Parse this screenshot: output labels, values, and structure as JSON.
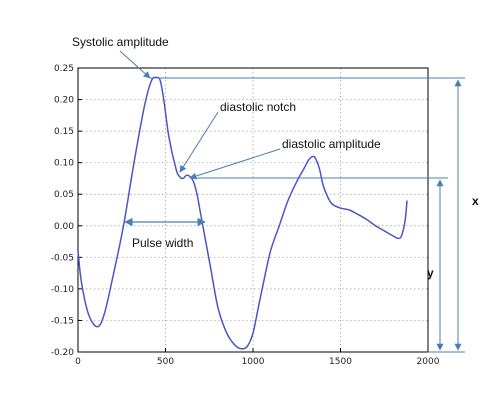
{
  "chart_data": {
    "type": "line",
    "title": "",
    "xlabel": "",
    "ylabel": "",
    "xlim": [
      0,
      2000
    ],
    "ylim": [
      -0.2,
      0.25
    ],
    "grid": true,
    "x_ticks": [
      "0",
      "500",
      "1000",
      "1500",
      "2000"
    ],
    "y_ticks": [
      "0.25",
      "0.20",
      "0.15",
      "0.10",
      "0.05",
      "0.00",
      "-0.05",
      "-0.10",
      "-0.15",
      "-0.20"
    ],
    "series": [
      {
        "x": [
          0,
          20,
          60,
          110,
          150,
          200,
          260,
          320,
          380,
          420,
          450,
          470,
          490,
          520,
          560,
          580,
          600,
          620,
          640,
          660,
          680,
          700,
          720,
          760,
          800,
          850,
          900,
          940,
          970,
          1000,
          1030,
          1060,
          1100,
          1150,
          1200,
          1250,
          1290,
          1320,
          1345,
          1360,
          1380,
          1400,
          1420,
          1450,
          1500,
          1550,
          1600,
          1650,
          1700,
          1750,
          1800,
          1830,
          1850,
          1870,
          1880
        ],
        "y": [
          -0.04,
          -0.09,
          -0.14,
          -0.16,
          -0.14,
          -0.08,
          0.0,
          0.1,
          0.19,
          0.23,
          0.235,
          0.23,
          0.2,
          0.14,
          0.09,
          0.078,
          0.075,
          0.08,
          0.078,
          0.07,
          0.05,
          0.02,
          -0.01,
          -0.07,
          -0.13,
          -0.17,
          -0.19,
          -0.195,
          -0.19,
          -0.17,
          -0.13,
          -0.09,
          -0.04,
          0.0,
          0.04,
          0.07,
          0.09,
          0.105,
          0.11,
          0.105,
          0.09,
          0.065,
          0.05,
          0.035,
          0.028,
          0.025,
          0.018,
          0.01,
          0.0,
          -0.008,
          -0.016,
          -0.02,
          -0.015,
          0.01,
          0.04
        ]
      }
    ],
    "color": "#4a56c4"
  },
  "annotations": {
    "systolic": "Systolic amplitude",
    "notch": "diastolic notch",
    "diastolic": "diastolic amplitude",
    "pulse_width": "Pulse width",
    "x_label": "x",
    "y_label": "y"
  }
}
